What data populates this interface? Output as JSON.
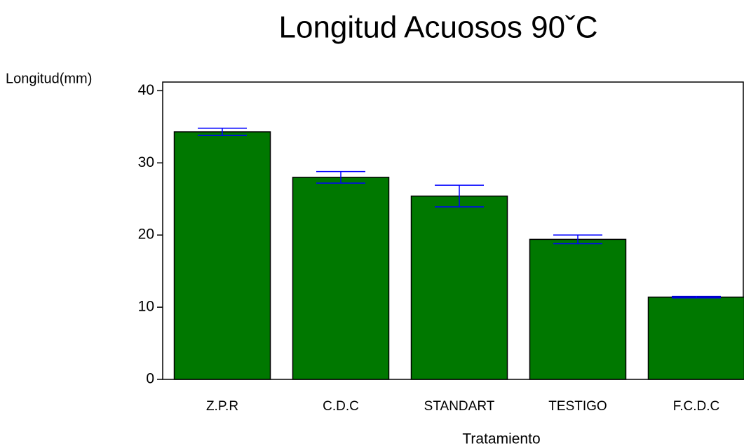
{
  "chart_data": {
    "type": "bar",
    "title": "Longitud Acuosos 90ˇC",
    "y_label": "Longitud(mm)",
    "x_label": "Tratamiento",
    "categories": [
      "Z.P.R",
      "C.D.C",
      "STANDART",
      "TESTIGO",
      "F.C.D.C"
    ],
    "values": [
      34.3,
      28.0,
      25.4,
      19.4,
      11.4
    ],
    "errors": [
      0.5,
      0.8,
      1.5,
      0.6,
      0.1
    ],
    "color": "#007800",
    "error_color": "#0000ff",
    "ylim": [
      0,
      41.2
    ],
    "yticks": [
      0,
      10,
      20,
      30,
      40
    ]
  }
}
